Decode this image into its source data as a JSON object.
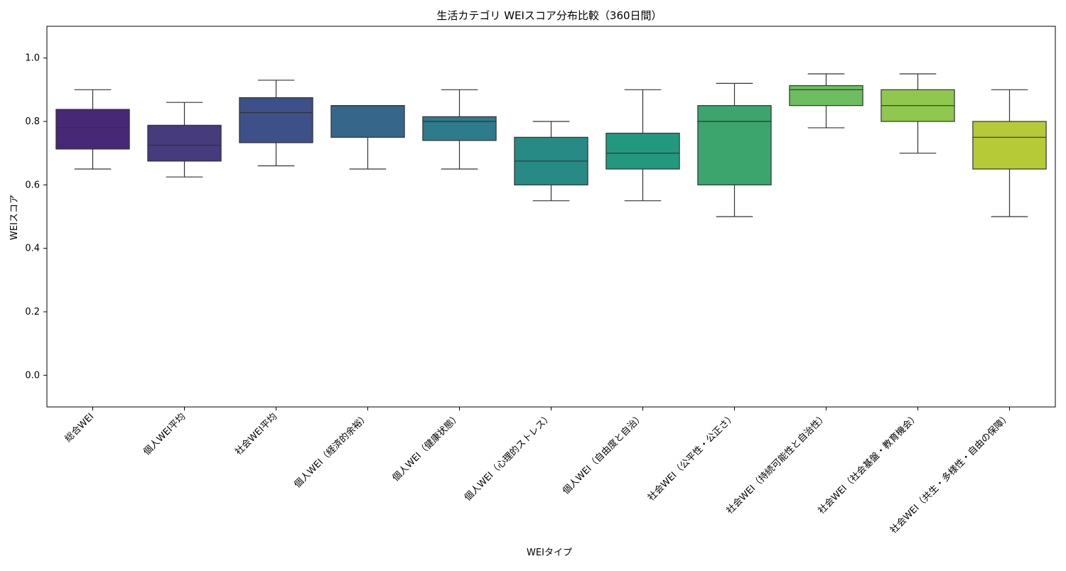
{
  "chart_data": {
    "type": "box",
    "title": "生活カテゴリ WEIスコア分布比較（360日間）",
    "xlabel": "WEIタイプ",
    "ylabel": "WEIスコア",
    "ylim": [
      -0.1,
      1.1
    ],
    "yticks": [
      0.0,
      0.2,
      0.4,
      0.6,
      0.8,
      1.0
    ],
    "ytick_labels": [
      "0.0",
      "0.2",
      "0.4",
      "0.6",
      "0.8",
      "1.0"
    ],
    "grid": false,
    "categories": [
      "総合WEI",
      "個人WEI平均",
      "社会WEI平均",
      "個人WEI（経済的余裕）",
      "個人WEI（健康状態）",
      "個人WEI（心理的ストレス）",
      "個人WEI（自由度と自治）",
      "社会WEI（公平性・公正さ）",
      "社会WEI（持続可能性と自治性）",
      "社会WEI（社会基盤・教育機会）",
      "社会WEI（共生・多様性・自由の保障）"
    ],
    "boxes": [
      {
        "min": 0.65,
        "q1": 0.713,
        "median": 0.781,
        "q3": 0.838,
        "max": 0.9
      },
      {
        "min": 0.625,
        "q1": 0.675,
        "median": 0.725,
        "q3": 0.788,
        "max": 0.86
      },
      {
        "min": 0.66,
        "q1": 0.733,
        "median": 0.828,
        "q3": 0.875,
        "max": 0.93
      },
      {
        "min": 0.65,
        "q1": 0.75,
        "median": 0.85,
        "q3": 0.85,
        "max": 0.85
      },
      {
        "min": 0.65,
        "q1": 0.74,
        "median": 0.8,
        "q3": 0.815,
        "max": 0.9
      },
      {
        "min": 0.55,
        "q1": 0.6,
        "median": 0.675,
        "q3": 0.75,
        "max": 0.8
      },
      {
        "min": 0.55,
        "q1": 0.65,
        "median": 0.7,
        "q3": 0.763,
        "max": 0.9
      },
      {
        "min": 0.5,
        "q1": 0.6,
        "median": 0.8,
        "q3": 0.85,
        "max": 0.92
      },
      {
        "min": 0.78,
        "q1": 0.85,
        "median": 0.9,
        "q3": 0.913,
        "max": 0.95
      },
      {
        "min": 0.7,
        "q1": 0.8,
        "median": 0.85,
        "q3": 0.9,
        "max": 0.95
      },
      {
        "min": 0.5,
        "q1": 0.65,
        "median": 0.75,
        "q3": 0.8,
        "max": 0.9
      }
    ],
    "colors": [
      "#472877",
      "#463b7c",
      "#3e5088",
      "#36678a",
      "#2e7b8c",
      "#288a85",
      "#22997f",
      "#3ca56d",
      "#6cbe60",
      "#8fc74f",
      "#b6ca37"
    ],
    "line_color": "#333333"
  }
}
